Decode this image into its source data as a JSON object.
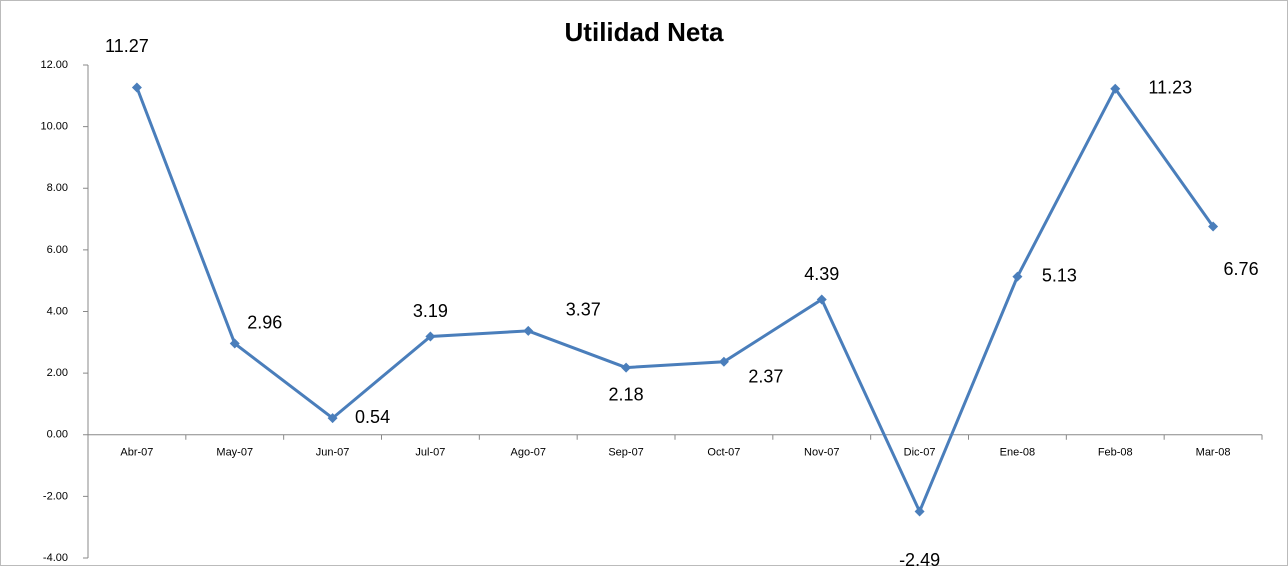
{
  "chart_data": {
    "type": "line",
    "title": "Utilidad Neta",
    "categories": [
      "Abr-07",
      "May-07",
      "Jun-07",
      "Jul-07",
      "Ago-07",
      "Sep-07",
      "Oct-07",
      "Nov-07",
      "Dic-07",
      "Ene-08",
      "Feb-08",
      "Mar-08"
    ],
    "series": [
      {
        "name": "Utilidad Neta",
        "color": "#4a7ebb",
        "values": [
          11.27,
          2.96,
          0.54,
          3.19,
          3.37,
          2.18,
          2.37,
          4.39,
          -2.49,
          5.13,
          11.23,
          6.76
        ]
      }
    ],
    "ylim": [
      -4,
      12
    ],
    "yticks": [
      {
        "value": -4,
        "label": "-4.00"
      },
      {
        "value": -2,
        "label": "-2.00"
      },
      {
        "value": 0,
        "label": "0.00"
      },
      {
        "value": 2,
        "label": "2.00"
      },
      {
        "value": 4,
        "label": "4.00"
      },
      {
        "value": 6,
        "label": "6.00"
      },
      {
        "value": 8,
        "label": "8.00"
      },
      {
        "value": 10,
        "label": "10.00"
      },
      {
        "value": 12,
        "label": "12.00"
      }
    ],
    "grid": false
  }
}
